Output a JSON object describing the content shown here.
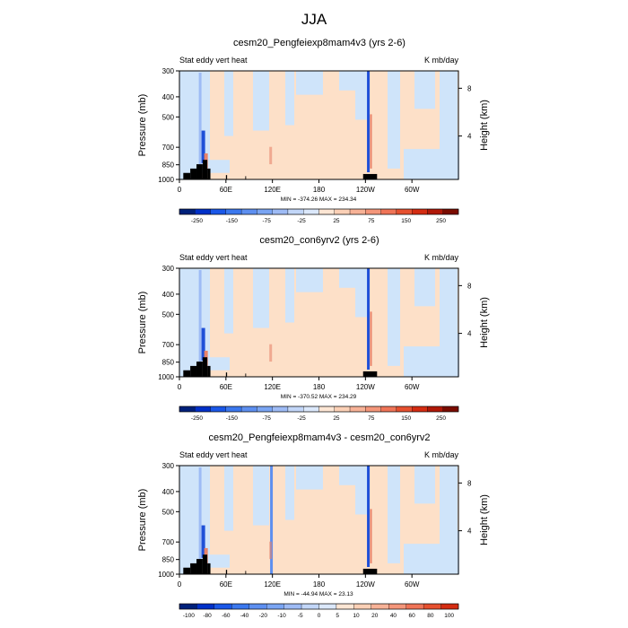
{
  "title": "JJA",
  "panels": [
    {
      "subtitle": "cesm20_Pengfeiexp8mam4v3 (yrs 2-6)",
      "left_label": "Stat eddy vert heat",
      "right_label": "K mb/day",
      "stats": "MIN = -374.26  MAX = 234.34",
      "colorbar_ticks": [
        "-250",
        "-150",
        "-75",
        "-25",
        "25",
        "75",
        "150",
        "250"
      ]
    },
    {
      "subtitle": "cesm20_con6yrv2 (yrs 2-6)",
      "left_label": "Stat eddy vert heat",
      "right_label": "K mb/day",
      "stats": "MIN = -370.52  MAX = 234.29",
      "colorbar_ticks": [
        "-250",
        "-150",
        "-75",
        "-25",
        "25",
        "75",
        "150",
        "250"
      ]
    },
    {
      "subtitle": "cesm20_Pengfeiexp8mam4v3 - cesm20_con6yrv2",
      "left_label": "Stat eddy vert heat",
      "right_label": "K mb/day",
      "stats": "MIN = -44.94  MAX = 23.13",
      "colorbar_ticks": [
        "-100",
        "-80",
        "-60",
        "-40",
        "-20",
        "-10",
        "-5",
        "0",
        "5",
        "10",
        "20",
        "40",
        "60",
        "80",
        "100"
      ]
    }
  ],
  "chart_data": {
    "type": "heatmap",
    "xlabel": "",
    "ylabel": "Pressure (mb)",
    "y2label": "Height (km)",
    "x_ticks": [
      "0",
      "60E",
      "120E",
      "180",
      "120W",
      "60W"
    ],
    "y_ticks": [
      "300",
      "400",
      "500",
      "700",
      "850",
      "1000"
    ],
    "y2_ticks": [
      "8",
      "4"
    ],
    "ylim": [
      1000,
      300
    ],
    "colors": {
      "neutral_pos": "#fde0c8",
      "neutral_neg": "#cfe4fa",
      "strong_neg": "#1f50d8",
      "strong_pos": "#e8836a",
      "terrain": "#000000"
    },
    "colorbar_colors_std": [
      "#00207a",
      "#0030c8",
      "#1a57e8",
      "#3b78ee",
      "#5d8ff0",
      "#7aa5f3",
      "#9ebbf5",
      "#c2d6f8",
      "#dbe8fb",
      "#fde6d4",
      "#fbd0b6",
      "#f7b297",
      "#f4967a",
      "#ef7457",
      "#e6502f",
      "#d42c12",
      "#b01808",
      "#7a0c00"
    ],
    "colorbar_colors_diff": [
      "#00207a",
      "#0030c8",
      "#1a57e8",
      "#3b78ee",
      "#5d8ff0",
      "#7aa5f3",
      "#9ebbf5",
      "#c2d6f8",
      "#dbe8fb",
      "#fde6d4",
      "#fbd0b6",
      "#f7b297",
      "#f4967a",
      "#ef7457",
      "#e6502f",
      "#d42c12"
    ]
  }
}
